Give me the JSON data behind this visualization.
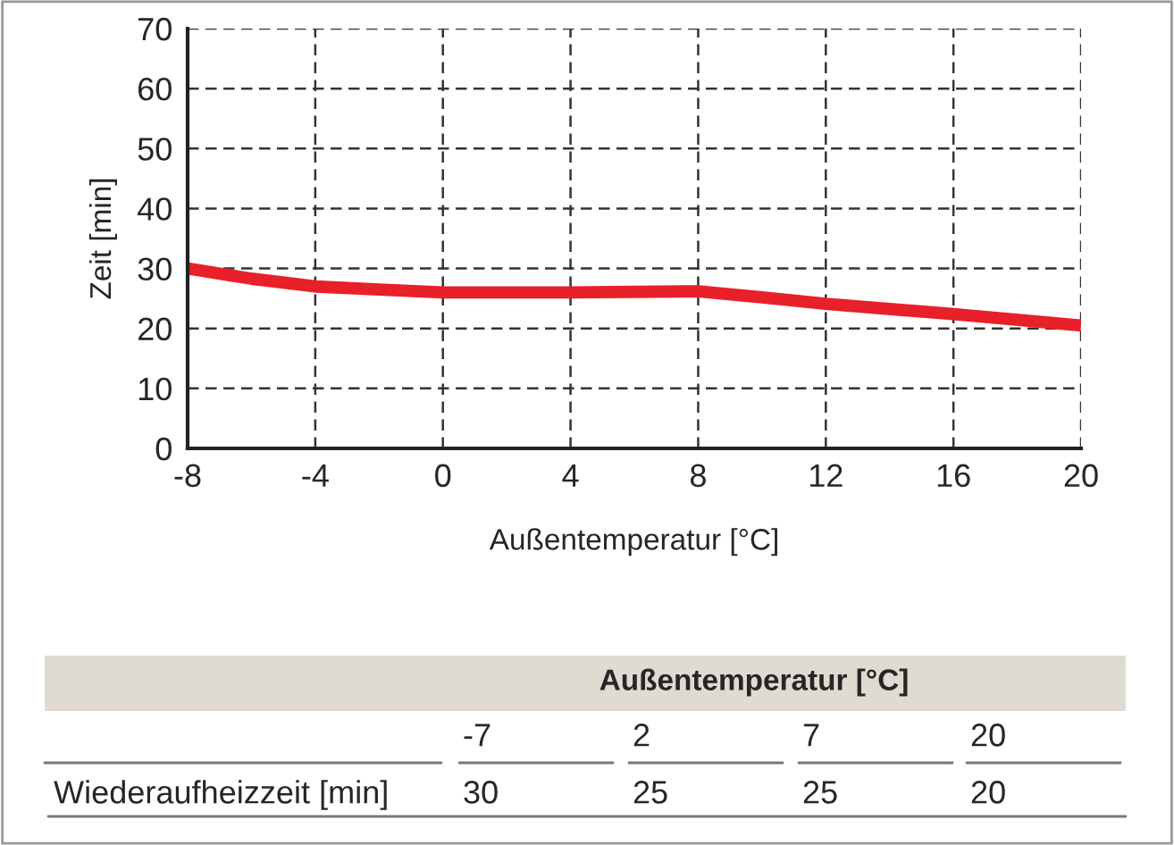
{
  "chart_data": {
    "type": "line",
    "xlabel": "Außentemperatur [°C]",
    "ylabel": "Zeit [min]",
    "x": [
      -8,
      -6,
      -4,
      -2,
      0,
      4,
      8,
      10,
      12,
      16,
      20
    ],
    "series": [
      {
        "color": "#e8202a",
        "values": [
          30,
          28.3,
          27,
          26.5,
          26,
          26,
          26.2,
          25.2,
          24.1,
          22.4,
          20.5
        ]
      }
    ],
    "xlim": [
      -8,
      20
    ],
    "xticks": [
      -8,
      -4,
      0,
      4,
      8,
      12,
      16,
      20
    ],
    "ylim": [
      0,
      70
    ],
    "yticks": [
      0,
      10,
      20,
      30,
      40,
      50,
      60,
      70
    ],
    "grid": true,
    "marker": "none",
    "line_style": "solid",
    "legend": false,
    "annotations": [
      "Außentemperatur [°C]",
      "-7",
      "2",
      "7",
      "20",
      "Wiederaufheizzeit [min]",
      "30",
      "25",
      "25",
      "20"
    ]
  }
}
